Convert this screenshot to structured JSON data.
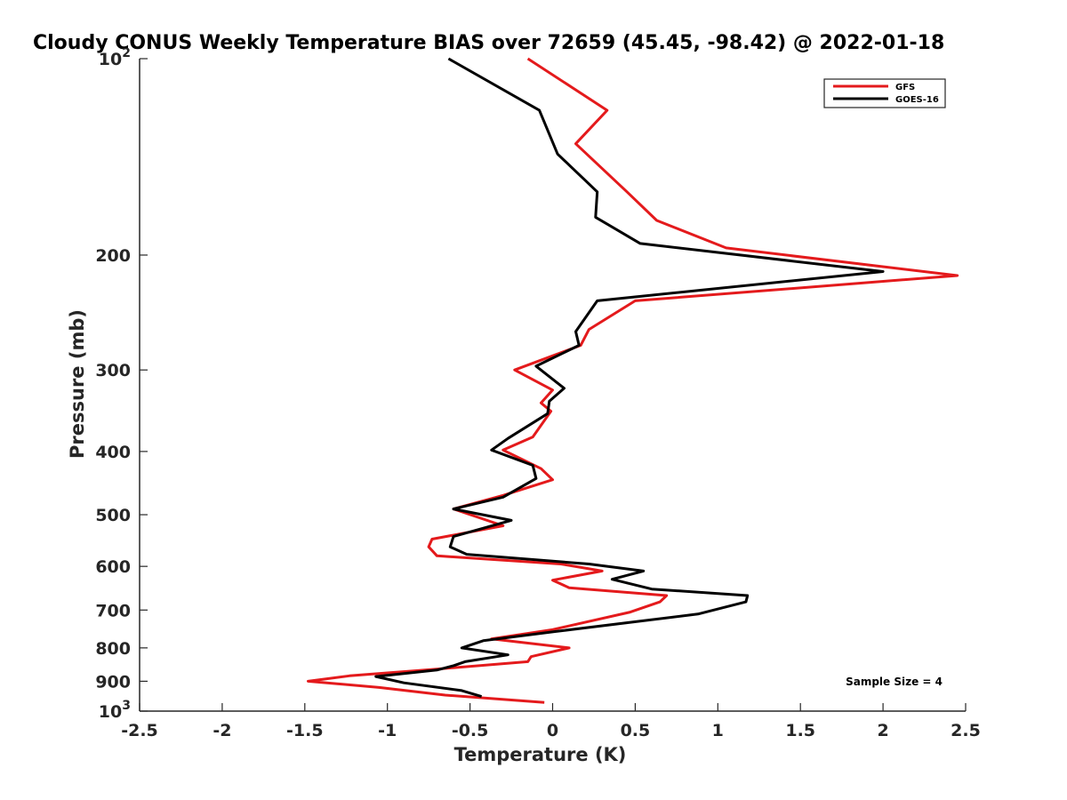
{
  "chart_data": {
    "type": "line",
    "title": "Cloudy CONUS Weekly Temperature BIAS over 72659 (45.45, -98.42) @ 2022-01-18",
    "xlabel": "Temperature (K)",
    "ylabel": "Pressure (mb)",
    "xlim": [
      -2.5,
      2.5
    ],
    "ylim": [
      100,
      1000
    ],
    "yscale": "log",
    "y_reversed": true,
    "grid": false,
    "legend_position": "top-right",
    "x_ticks": [
      {
        "value": -2.5,
        "label": "-2.5"
      },
      {
        "value": -2,
        "label": "-2"
      },
      {
        "value": -1.5,
        "label": "-1.5"
      },
      {
        "value": -1,
        "label": "-1"
      },
      {
        "value": -0.5,
        "label": "-0.5"
      },
      {
        "value": 0,
        "label": "0"
      },
      {
        "value": 0.5,
        "label": "0.5"
      },
      {
        "value": 1,
        "label": "1"
      },
      {
        "value": 1.5,
        "label": "1.5"
      },
      {
        "value": 2,
        "label": "2"
      },
      {
        "value": 2.5,
        "label": "2.5"
      }
    ],
    "y_ticks": [
      {
        "value": 100,
        "base": "10",
        "exp": "2"
      },
      {
        "value": 200,
        "label": "200"
      },
      {
        "value": 300,
        "label": "300"
      },
      {
        "value": 400,
        "label": "400"
      },
      {
        "value": 500,
        "label": "500"
      },
      {
        "value": 600,
        "label": "600"
      },
      {
        "value": 700,
        "label": "700"
      },
      {
        "value": 800,
        "label": "800"
      },
      {
        "value": 900,
        "label": "900"
      },
      {
        "value": 1000,
        "base": "10",
        "exp": "3"
      }
    ],
    "series": [
      {
        "name": "GFS",
        "color": "#e41a1c",
        "points": [
          [
            -0.15,
            100
          ],
          [
            0.33,
            120
          ],
          [
            0.14,
            135
          ],
          [
            0.45,
            160
          ],
          [
            0.63,
            177
          ],
          [
            1.05,
            195
          ],
          [
            2.45,
            215
          ],
          [
            0.5,
            235
          ],
          [
            0.22,
            260
          ],
          [
            0.17,
            275
          ],
          [
            -0.23,
            300
          ],
          [
            0.0,
            322
          ],
          [
            -0.07,
            337
          ],
          [
            -0.01,
            347
          ],
          [
            -0.12,
            380
          ],
          [
            -0.3,
            398
          ],
          [
            -0.07,
            425
          ],
          [
            0.0,
            442
          ],
          [
            -0.3,
            467
          ],
          [
            -0.6,
            490
          ],
          [
            -0.3,
            520
          ],
          [
            -0.73,
            545
          ],
          [
            -0.75,
            560
          ],
          [
            -0.7,
            578
          ],
          [
            0.05,
            595
          ],
          [
            0.3,
            610
          ],
          [
            0.0,
            630
          ],
          [
            0.1,
            647
          ],
          [
            0.69,
            665
          ],
          [
            0.65,
            680
          ],
          [
            0.47,
            705
          ],
          [
            0.0,
            750
          ],
          [
            -0.37,
            775
          ],
          [
            0.1,
            800
          ],
          [
            -0.13,
            825
          ],
          [
            -0.15,
            840
          ],
          [
            -0.7,
            862
          ],
          [
            -1.23,
            883
          ],
          [
            -1.48,
            900
          ],
          [
            -1.05,
            920
          ],
          [
            -0.65,
            945
          ],
          [
            -0.05,
            970
          ]
        ]
      },
      {
        "name": "GOES-16",
        "color": "#000000",
        "points": [
          [
            -0.63,
            100
          ],
          [
            -0.08,
            120
          ],
          [
            0.03,
            140
          ],
          [
            0.27,
            160
          ],
          [
            0.26,
            175
          ],
          [
            0.53,
            192
          ],
          [
            2.0,
            212
          ],
          [
            0.27,
            235
          ],
          [
            0.14,
            262
          ],
          [
            0.16,
            275
          ],
          [
            -0.1,
            296
          ],
          [
            0.07,
            320
          ],
          [
            -0.02,
            335
          ],
          [
            -0.03,
            350
          ],
          [
            -0.27,
            382
          ],
          [
            -0.37,
            398
          ],
          [
            -0.12,
            420
          ],
          [
            -0.1,
            440
          ],
          [
            -0.3,
            470
          ],
          [
            -0.6,
            490
          ],
          [
            -0.25,
            510
          ],
          [
            -0.6,
            540
          ],
          [
            -0.62,
            560
          ],
          [
            -0.52,
            575
          ],
          [
            0.22,
            595
          ],
          [
            0.55,
            610
          ],
          [
            0.36,
            628
          ],
          [
            0.6,
            650
          ],
          [
            1.18,
            665
          ],
          [
            1.17,
            680
          ],
          [
            0.88,
            710
          ],
          [
            0.02,
            755
          ],
          [
            -0.42,
            780
          ],
          [
            -0.55,
            800
          ],
          [
            -0.27,
            820
          ],
          [
            -0.53,
            840
          ],
          [
            -0.6,
            852
          ],
          [
            -0.7,
            865
          ],
          [
            -1.07,
            885
          ],
          [
            -0.9,
            905
          ],
          [
            -0.55,
            930
          ],
          [
            -0.43,
            950
          ]
        ]
      }
    ],
    "annotations": [
      {
        "text": "Sample Size = 4",
        "position": "bottom-right"
      }
    ]
  }
}
